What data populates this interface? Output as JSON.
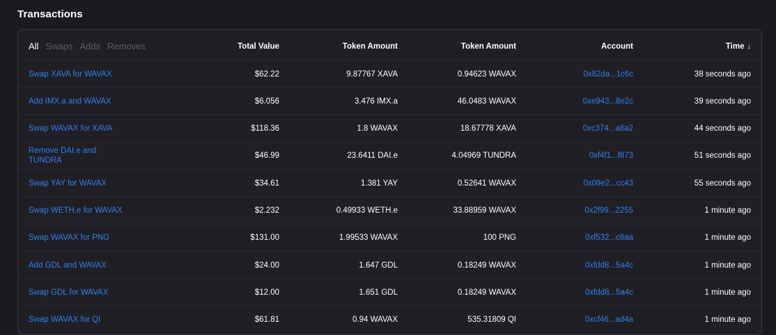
{
  "title": "Transactions",
  "filters": [
    {
      "label": "All",
      "active": true
    },
    {
      "label": "Swaps",
      "active": false
    },
    {
      "label": "Adds",
      "active": false
    },
    {
      "label": "Removes",
      "active": false
    }
  ],
  "columns": {
    "total_value": "Total Value",
    "token_amount_1": "Token Amount",
    "token_amount_2": "Token Amount",
    "account": "Account",
    "time": "Time",
    "time_sort_icon": "↓"
  },
  "colors": {
    "background": "#1b1b1f",
    "panel": "#1f1f24",
    "link": "#2f80ed",
    "inactive_filter": "#5c5f69",
    "text": "#ffffff"
  },
  "rows": [
    {
      "type": "Swap XAVA for WAVAX",
      "total": "$62.22",
      "token1": "9.87767 XAVA",
      "token2": "0.94623 WAVAX",
      "account": "0x82da...1c6c",
      "time": "38 seconds ago"
    },
    {
      "type": "Add IMX.a and WAVAX",
      "total": "$6.056",
      "token1": "3.476 IMX.a",
      "token2": "46.0483 WAVAX",
      "account": "0xe943...8e2c",
      "time": "39 seconds ago"
    },
    {
      "type": "Swap WAVAX for XAVA",
      "total": "$118.36",
      "token1": "1.8 WAVAX",
      "token2": "18.67778 XAVA",
      "account": "0xc374...a8a2",
      "time": "44 seconds ago"
    },
    {
      "type": "Remove DAI.e and TUNDRA",
      "total": "$46.99",
      "token1": "23.6411 DAI.e",
      "token2": "4.04969 TUNDRA",
      "account": "0xf4f1...f873",
      "time": "51 seconds ago"
    },
    {
      "type": "Swap YAY for WAVAX",
      "total": "$34.61",
      "token1": "1.381 YAY",
      "token2": "0.52641 WAVAX",
      "account": "0x09e2...cc43",
      "time": "55 seconds ago"
    },
    {
      "type": "Swap WETH.e for WAVAX",
      "total": "$2.232",
      "token1": "0.49933 WETH.e",
      "token2": "33.88959 WAVAX",
      "account": "0x2f99...2255",
      "time": "1 minute ago"
    },
    {
      "type": "Swap WAVAX for PNG",
      "total": "$131.00",
      "token1": "1.99533 WAVAX",
      "token2": "100 PNG",
      "account": "0xf532...c8aa",
      "time": "1 minute ago"
    },
    {
      "type": "Add GDL and WAVAX",
      "total": "$24.00",
      "token1": "1.647 GDL",
      "token2": "0.18249 WAVAX",
      "account": "0xfdd8...5a4c",
      "time": "1 minute ago"
    },
    {
      "type": "Swap GDL for WAVAX",
      "total": "$12.00",
      "token1": "1.651 GDL",
      "token2": "0.18249 WAVAX",
      "account": "0xfdd8...5a4c",
      "time": "1 minute ago"
    },
    {
      "type": "Swap WAVAX for QI",
      "total": "$61.81",
      "token1": "0.94 WAVAX",
      "token2": "535.31809 QI",
      "account": "0xcf46...ad4a",
      "time": "1 minute ago"
    }
  ]
}
